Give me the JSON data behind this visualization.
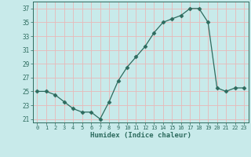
{
  "x": [
    0,
    1,
    2,
    3,
    4,
    5,
    6,
    7,
    8,
    9,
    10,
    11,
    12,
    13,
    14,
    15,
    16,
    17,
    18,
    19,
    20,
    21,
    22,
    23
  ],
  "y": [
    25.0,
    25.0,
    24.5,
    23.5,
    22.5,
    22.0,
    22.0,
    21.0,
    23.5,
    26.5,
    28.5,
    30.0,
    31.5,
    33.5,
    35.0,
    35.5,
    36.0,
    37.0,
    37.0,
    35.0,
    25.5,
    25.0,
    25.5,
    25.5
  ],
  "line_color": "#2d6b5e",
  "marker": "D",
  "marker_size": 2.5,
  "xlabel": "Humidex (Indice chaleur)",
  "bg_color": "#c8eaea",
  "grid_color": "#e8b8b8",
  "xlim": [
    -0.5,
    23.5
  ],
  "ylim": [
    20.5,
    38.0
  ],
  "yticks": [
    21,
    23,
    25,
    27,
    29,
    31,
    33,
    35,
    37
  ],
  "xticks": [
    0,
    1,
    2,
    3,
    4,
    5,
    6,
    7,
    8,
    9,
    10,
    11,
    12,
    13,
    14,
    15,
    16,
    17,
    18,
    19,
    20,
    21,
    22,
    23
  ],
  "tick_color": "#2d6b5e",
  "label_color": "#2d6b5e"
}
